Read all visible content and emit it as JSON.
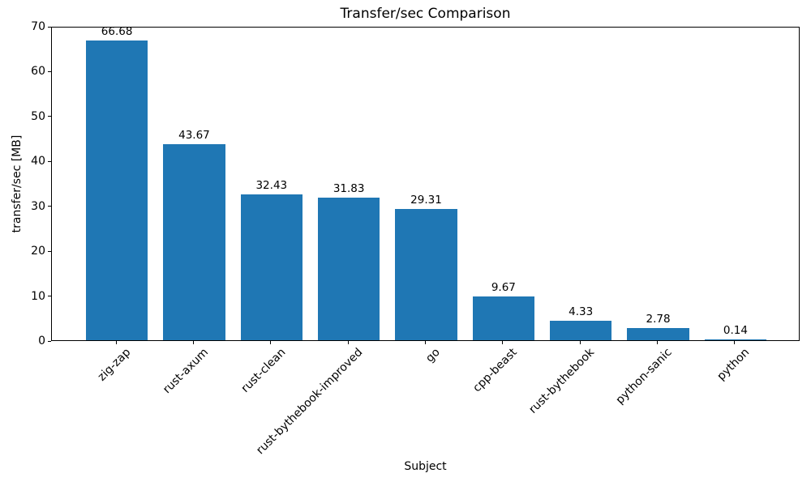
{
  "chart_data": {
    "type": "bar",
    "title": "Transfer/sec Comparison",
    "xlabel": "Subject",
    "ylabel": "transfer/sec [MB]",
    "categories": [
      "zig-zap",
      "rust-axum",
      "rust-clean",
      "rust-bythebook-improved",
      "go",
      "cpp-beast",
      "rust-bythebook",
      "python-sanic",
      "python"
    ],
    "values": [
      66.68,
      43.67,
      32.43,
      31.83,
      29.31,
      9.67,
      4.33,
      2.78,
      0.14
    ],
    "value_labels": [
      "66.68",
      "43.67",
      "32.43",
      "31.83",
      "29.31",
      "9.67",
      "4.33",
      "2.78",
      "0.14"
    ],
    "ylim": [
      0,
      70
    ],
    "yticks": [
      0,
      10,
      20,
      30,
      40,
      50,
      60,
      70
    ],
    "bar_color": "#1f77b4",
    "background_color": "#ffffff",
    "text_color": "#000000",
    "spine_color": "#000000",
    "grid": false,
    "legend": null,
    "x_tick_label_rotation_deg": 45
  }
}
